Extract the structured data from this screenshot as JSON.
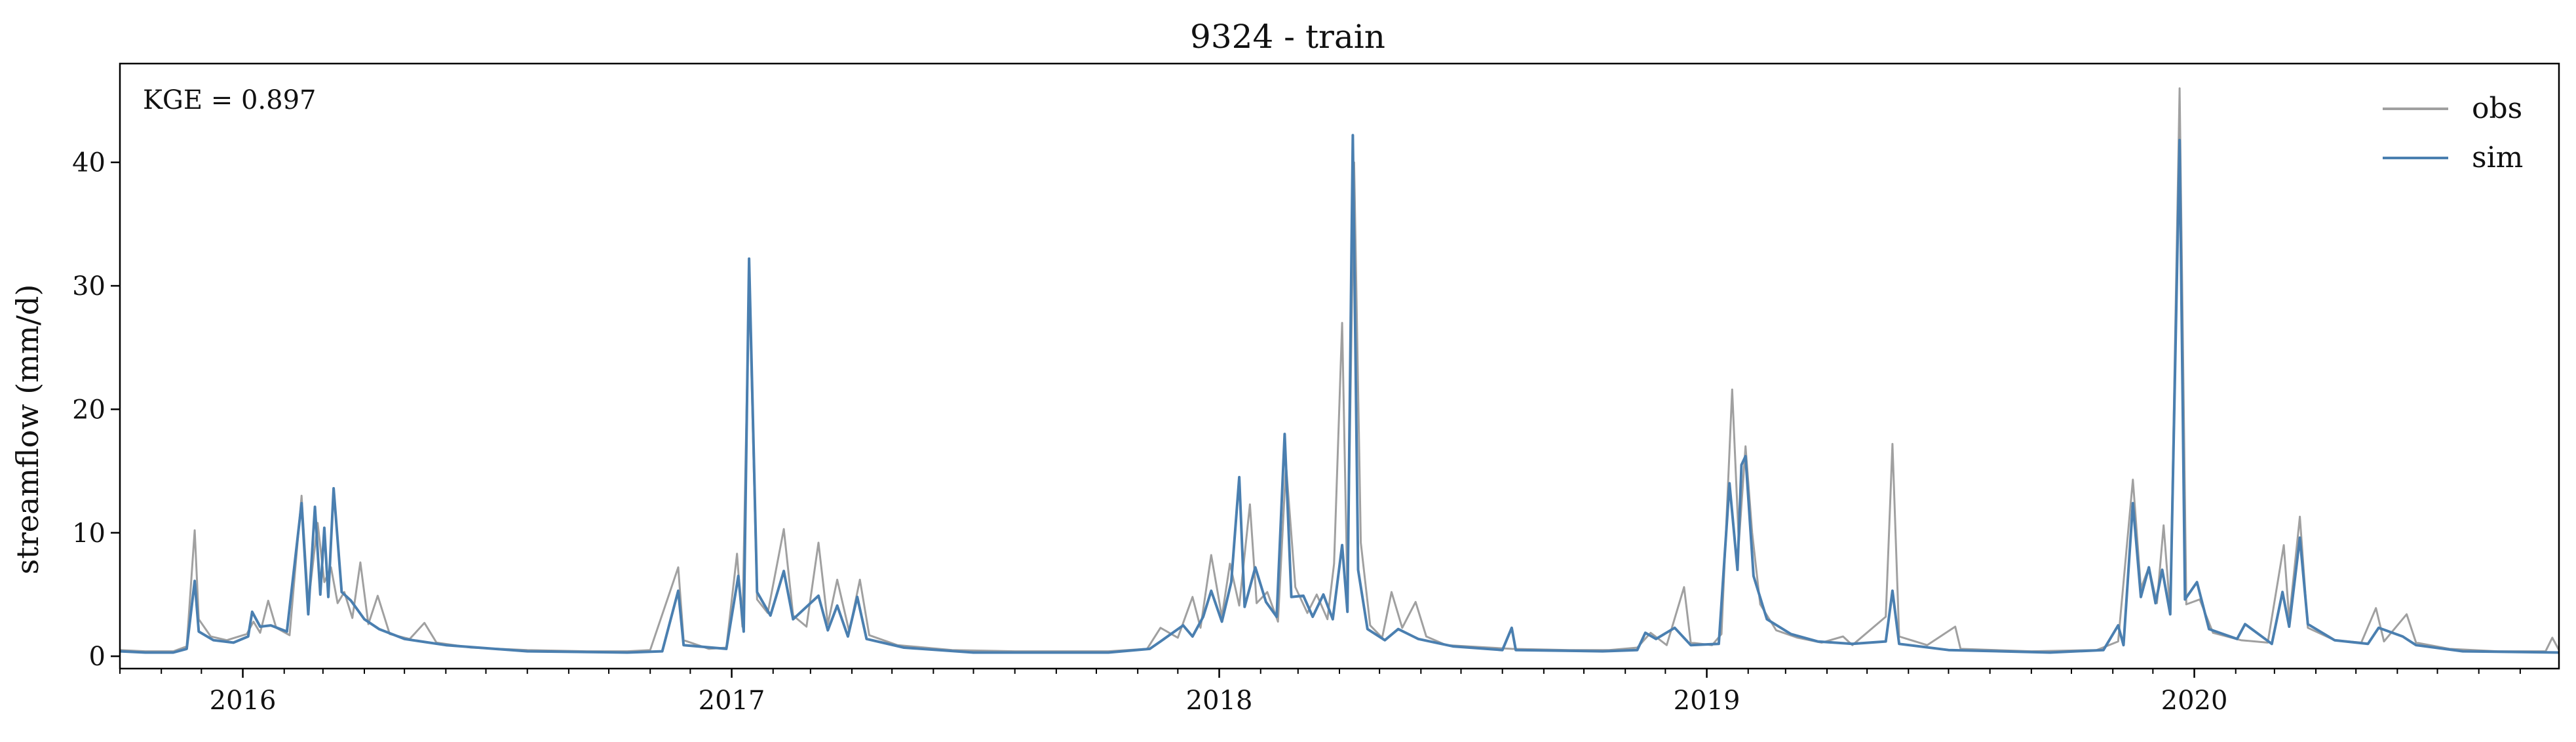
{
  "chart_data": {
    "type": "line",
    "title": "9324 - train",
    "xlabel": "",
    "ylabel": "streamflow (mm/d)",
    "annotation": "KGE = 0.897",
    "xlim": [
      "2015-10-01",
      "2020-09-30"
    ],
    "ylim": [
      -1,
      48
    ],
    "grid": false,
    "legend_position": "top-right",
    "x_tick_labels": [
      "2016",
      "2017",
      "2018",
      "2019",
      "2020"
    ],
    "x_ticks": [
      "2016-01-01",
      "2017-01-01",
      "2018-01-01",
      "2019-01-01",
      "2020-01-01"
    ],
    "y_ticks": [
      0,
      10,
      20,
      30,
      40
    ],
    "y_tick_labels": [
      "0",
      "10",
      "20",
      "30",
      "40"
    ],
    "series": [
      {
        "name": "obs",
        "color": "#a0a0a0",
        "points": [
          [
            "2015-10-01",
            0.5
          ],
          [
            "2015-10-20",
            0.4
          ],
          [
            "2015-11-10",
            0.4
          ],
          [
            "2015-11-20",
            0.8
          ],
          [
            "2015-11-26",
            10.2
          ],
          [
            "2015-11-29",
            3.0
          ],
          [
            "2015-12-08",
            1.6
          ],
          [
            "2015-12-20",
            1.3
          ],
          [
            "2016-01-04",
            1.8
          ],
          [
            "2016-01-09",
            2.8
          ],
          [
            "2016-01-14",
            1.9
          ],
          [
            "2016-01-20",
            4.5
          ],
          [
            "2016-01-26",
            2.3
          ],
          [
            "2016-02-05",
            1.7
          ],
          [
            "2016-02-14",
            13.0
          ],
          [
            "2016-02-19",
            4.2
          ],
          [
            "2016-02-26",
            10.8
          ],
          [
            "2016-03-02",
            6.0
          ],
          [
            "2016-03-07",
            7.2
          ],
          [
            "2016-03-12",
            4.3
          ],
          [
            "2016-03-17",
            5.2
          ],
          [
            "2016-03-23",
            3.1
          ],
          [
            "2016-03-29",
            7.6
          ],
          [
            "2016-04-04",
            2.6
          ],
          [
            "2016-04-11",
            4.9
          ],
          [
            "2016-04-20",
            1.8
          ],
          [
            "2016-05-05",
            1.4
          ],
          [
            "2016-05-16",
            2.7
          ],
          [
            "2016-05-25",
            1.1
          ],
          [
            "2016-06-20",
            0.7
          ],
          [
            "2016-08-01",
            0.5
          ],
          [
            "2016-09-15",
            0.4
          ],
          [
            "2016-10-15",
            0.4
          ],
          [
            "2016-11-01",
            0.5
          ],
          [
            "2016-11-22",
            7.2
          ],
          [
            "2016-11-26",
            1.3
          ],
          [
            "2016-12-15",
            0.6
          ],
          [
            "2016-12-28",
            0.7
          ],
          [
            "2017-01-05",
            8.3
          ],
          [
            "2017-01-09",
            2.4
          ],
          [
            "2017-01-14",
            30.5
          ],
          [
            "2017-01-20",
            4.6
          ],
          [
            "2017-01-28",
            3.5
          ],
          [
            "2017-02-09",
            10.3
          ],
          [
            "2017-02-16",
            3.3
          ],
          [
            "2017-02-26",
            2.4
          ],
          [
            "2017-03-07",
            9.2
          ],
          [
            "2017-03-14",
            2.6
          ],
          [
            "2017-03-21",
            6.2
          ],
          [
            "2017-03-30",
            2.0
          ],
          [
            "2017-04-07",
            6.2
          ],
          [
            "2017-04-14",
            1.7
          ],
          [
            "2017-05-05",
            0.9
          ],
          [
            "2017-06-15",
            0.5
          ],
          [
            "2017-08-01",
            0.4
          ],
          [
            "2017-10-10",
            0.4
          ],
          [
            "2017-11-08",
            0.6
          ],
          [
            "2017-11-18",
            2.3
          ],
          [
            "2017-12-01",
            1.5
          ],
          [
            "2017-12-12",
            4.8
          ],
          [
            "2017-12-18",
            2.3
          ],
          [
            "2017-12-26",
            8.2
          ],
          [
            "2018-01-03",
            3.2
          ],
          [
            "2018-01-09",
            7.5
          ],
          [
            "2018-01-16",
            4.1
          ],
          [
            "2018-01-24",
            12.3
          ],
          [
            "2018-01-29",
            4.3
          ],
          [
            "2018-02-06",
            5.2
          ],
          [
            "2018-02-14",
            2.8
          ],
          [
            "2018-02-20",
            15.5
          ],
          [
            "2018-02-27",
            5.6
          ],
          [
            "2018-03-08",
            3.5
          ],
          [
            "2018-03-15",
            5.0
          ],
          [
            "2018-03-23",
            3.0
          ],
          [
            "2018-03-28",
            7.5
          ],
          [
            "2018-04-03",
            27.0
          ],
          [
            "2018-04-07",
            5.0
          ],
          [
            "2018-04-12",
            40.0
          ],
          [
            "2018-04-17",
            9.2
          ],
          [
            "2018-04-24",
            2.5
          ],
          [
            "2018-05-03",
            1.5
          ],
          [
            "2018-05-10",
            5.2
          ],
          [
            "2018-05-18",
            2.3
          ],
          [
            "2018-05-28",
            4.4
          ],
          [
            "2018-06-05",
            1.6
          ],
          [
            "2018-06-20",
            0.9
          ],
          [
            "2018-08-08",
            0.6
          ],
          [
            "2018-09-20",
            0.5
          ],
          [
            "2018-10-20",
            0.5
          ],
          [
            "2018-11-10",
            0.7
          ],
          [
            "2018-11-20",
            1.9
          ],
          [
            "2018-12-02",
            0.9
          ],
          [
            "2018-12-15",
            5.6
          ],
          [
            "2018-12-20",
            1.1
          ],
          [
            "2019-01-05",
            0.9
          ],
          [
            "2019-01-12",
            1.8
          ],
          [
            "2019-01-20",
            21.6
          ],
          [
            "2019-01-25",
            9.2
          ],
          [
            "2019-01-30",
            17.0
          ],
          [
            "2019-02-04",
            10.0
          ],
          [
            "2019-02-10",
            4.2
          ],
          [
            "2019-02-22",
            2.1
          ],
          [
            "2019-03-10",
            1.5
          ],
          [
            "2019-03-28",
            1.1
          ],
          [
            "2019-04-13",
            1.6
          ],
          [
            "2019-04-20",
            0.9
          ],
          [
            "2019-05-15",
            3.2
          ],
          [
            "2019-05-20",
            17.2
          ],
          [
            "2019-05-25",
            1.6
          ],
          [
            "2019-06-15",
            0.9
          ],
          [
            "2019-07-06",
            2.4
          ],
          [
            "2019-07-10",
            0.6
          ],
          [
            "2019-09-01",
            0.4
          ],
          [
            "2019-10-20",
            0.5
          ],
          [
            "2019-11-05",
            1.2
          ],
          [
            "2019-11-16",
            14.3
          ],
          [
            "2019-11-22",
            5.5
          ],
          [
            "2019-11-28",
            7.2
          ],
          [
            "2019-12-04",
            4.3
          ],
          [
            "2019-12-09",
            10.6
          ],
          [
            "2019-12-14",
            3.6
          ],
          [
            "2019-12-21",
            46.0
          ],
          [
            "2019-12-26",
            4.2
          ],
          [
            "2020-01-05",
            4.6
          ],
          [
            "2020-01-15",
            1.9
          ],
          [
            "2020-02-05",
            1.3
          ],
          [
            "2020-02-25",
            1.1
          ],
          [
            "2020-03-08",
            9.0
          ],
          [
            "2020-03-12",
            3.0
          ],
          [
            "2020-03-20",
            11.3
          ],
          [
            "2020-03-26",
            2.3
          ],
          [
            "2020-04-15",
            1.3
          ],
          [
            "2020-05-05",
            1.1
          ],
          [
            "2020-05-16",
            3.9
          ],
          [
            "2020-05-22",
            1.2
          ],
          [
            "2020-06-08",
            3.4
          ],
          [
            "2020-06-15",
            1.1
          ],
          [
            "2020-07-10",
            0.6
          ],
          [
            "2020-08-15",
            0.4
          ],
          [
            "2020-09-20",
            0.4
          ],
          [
            "2020-09-25",
            1.5
          ],
          [
            "2020-09-30",
            0.5
          ]
        ]
      },
      {
        "name": "sim",
        "color": "#4a7fb0",
        "points": [
          [
            "2015-10-01",
            0.4
          ],
          [
            "2015-10-20",
            0.3
          ],
          [
            "2015-11-10",
            0.3
          ],
          [
            "2015-11-20",
            0.6
          ],
          [
            "2015-11-26",
            6.1
          ],
          [
            "2015-11-29",
            2.0
          ],
          [
            "2015-12-10",
            1.3
          ],
          [
            "2015-12-25",
            1.1
          ],
          [
            "2016-01-05",
            1.6
          ],
          [
            "2016-01-08",
            3.6
          ],
          [
            "2016-01-14",
            2.4
          ],
          [
            "2016-01-22",
            2.5
          ],
          [
            "2016-02-03",
            2.0
          ],
          [
            "2016-02-14",
            12.4
          ],
          [
            "2016-02-19",
            3.4
          ],
          [
            "2016-02-24",
            12.1
          ],
          [
            "2016-02-28",
            5.0
          ],
          [
            "2016-03-02",
            10.4
          ],
          [
            "2016-03-05",
            4.8
          ],
          [
            "2016-03-09",
            13.6
          ],
          [
            "2016-03-15",
            5.2
          ],
          [
            "2016-03-22",
            4.5
          ],
          [
            "2016-04-01",
            3.0
          ],
          [
            "2016-04-12",
            2.2
          ],
          [
            "2016-05-01",
            1.4
          ],
          [
            "2016-06-01",
            0.9
          ],
          [
            "2016-08-01",
            0.4
          ],
          [
            "2016-10-15",
            0.3
          ],
          [
            "2016-11-10",
            0.4
          ],
          [
            "2016-11-22",
            5.3
          ],
          [
            "2016-11-26",
            0.9
          ],
          [
            "2016-12-28",
            0.6
          ],
          [
            "2017-01-06",
            6.5
          ],
          [
            "2017-01-10",
            2.0
          ],
          [
            "2017-01-14",
            32.2
          ],
          [
            "2017-01-20",
            5.2
          ],
          [
            "2017-01-30",
            3.3
          ],
          [
            "2017-02-09",
            6.9
          ],
          [
            "2017-02-16",
            3.0
          ],
          [
            "2017-03-07",
            4.9
          ],
          [
            "2017-03-14",
            2.1
          ],
          [
            "2017-03-21",
            4.1
          ],
          [
            "2017-03-29",
            1.6
          ],
          [
            "2017-04-05",
            4.8
          ],
          [
            "2017-04-12",
            1.4
          ],
          [
            "2017-05-10",
            0.7
          ],
          [
            "2017-07-01",
            0.3
          ],
          [
            "2017-10-10",
            0.3
          ],
          [
            "2017-11-10",
            0.6
          ],
          [
            "2017-11-18",
            1.2
          ],
          [
            "2017-12-05",
            2.5
          ],
          [
            "2017-12-12",
            1.6
          ],
          [
            "2017-12-20",
            3.2
          ],
          [
            "2017-12-26",
            5.3
          ],
          [
            "2018-01-03",
            2.8
          ],
          [
            "2018-01-10",
            6.0
          ],
          [
            "2018-01-16",
            14.5
          ],
          [
            "2018-01-20",
            4.0
          ],
          [
            "2018-01-28",
            7.2
          ],
          [
            "2018-02-05",
            4.4
          ],
          [
            "2018-02-13",
            3.2
          ],
          [
            "2018-02-19",
            18.0
          ],
          [
            "2018-02-24",
            4.8
          ],
          [
            "2018-03-05",
            4.9
          ],
          [
            "2018-03-12",
            3.2
          ],
          [
            "2018-03-20",
            5.0
          ],
          [
            "2018-03-27",
            3.0
          ],
          [
            "2018-04-03",
            9.0
          ],
          [
            "2018-04-07",
            3.6
          ],
          [
            "2018-04-11",
            42.2
          ],
          [
            "2018-04-15",
            7.0
          ],
          [
            "2018-04-22",
            2.2
          ],
          [
            "2018-05-05",
            1.3
          ],
          [
            "2018-05-15",
            2.2
          ],
          [
            "2018-05-30",
            1.4
          ],
          [
            "2018-06-25",
            0.8
          ],
          [
            "2018-08-01",
            0.5
          ],
          [
            "2018-08-08",
            2.3
          ],
          [
            "2018-08-11",
            0.5
          ],
          [
            "2018-10-15",
            0.4
          ],
          [
            "2018-11-10",
            0.5
          ],
          [
            "2018-11-16",
            1.9
          ],
          [
            "2018-11-24",
            1.4
          ],
          [
            "2018-12-08",
            2.3
          ],
          [
            "2018-12-20",
            0.9
          ],
          [
            "2019-01-10",
            1.0
          ],
          [
            "2019-01-18",
            14.0
          ],
          [
            "2019-01-24",
            7.0
          ],
          [
            "2019-01-27",
            15.5
          ],
          [
            "2019-01-30",
            16.2
          ],
          [
            "2019-02-05",
            6.5
          ],
          [
            "2019-02-15",
            3.0
          ],
          [
            "2019-03-05",
            1.8
          ],
          [
            "2019-03-25",
            1.2
          ],
          [
            "2019-04-20",
            1.0
          ],
          [
            "2019-05-15",
            1.2
          ],
          [
            "2019-05-20",
            5.3
          ],
          [
            "2019-05-25",
            1.0
          ],
          [
            "2019-07-01",
            0.5
          ],
          [
            "2019-09-15",
            0.3
          ],
          [
            "2019-10-25",
            0.5
          ],
          [
            "2019-11-05",
            2.5
          ],
          [
            "2019-11-09",
            0.9
          ],
          [
            "2019-11-16",
            12.4
          ],
          [
            "2019-11-22",
            4.8
          ],
          [
            "2019-11-28",
            7.2
          ],
          [
            "2019-12-03",
            4.3
          ],
          [
            "2019-12-08",
            7.0
          ],
          [
            "2019-12-14",
            3.4
          ],
          [
            "2019-12-21",
            41.8
          ],
          [
            "2019-12-25",
            4.6
          ],
          [
            "2020-01-03",
            6.0
          ],
          [
            "2020-01-12",
            2.2
          ],
          [
            "2020-02-02",
            1.4
          ],
          [
            "2020-02-08",
            2.6
          ],
          [
            "2020-02-28",
            1.0
          ],
          [
            "2020-03-07",
            5.2
          ],
          [
            "2020-03-12",
            2.4
          ],
          [
            "2020-03-20",
            9.6
          ],
          [
            "2020-03-26",
            2.6
          ],
          [
            "2020-04-15",
            1.3
          ],
          [
            "2020-05-10",
            1.0
          ],
          [
            "2020-05-18",
            2.3
          ],
          [
            "2020-06-05",
            1.6
          ],
          [
            "2020-06-15",
            0.9
          ],
          [
            "2020-07-20",
            0.4
          ],
          [
            "2020-09-30",
            0.3
          ]
        ]
      }
    ]
  }
}
